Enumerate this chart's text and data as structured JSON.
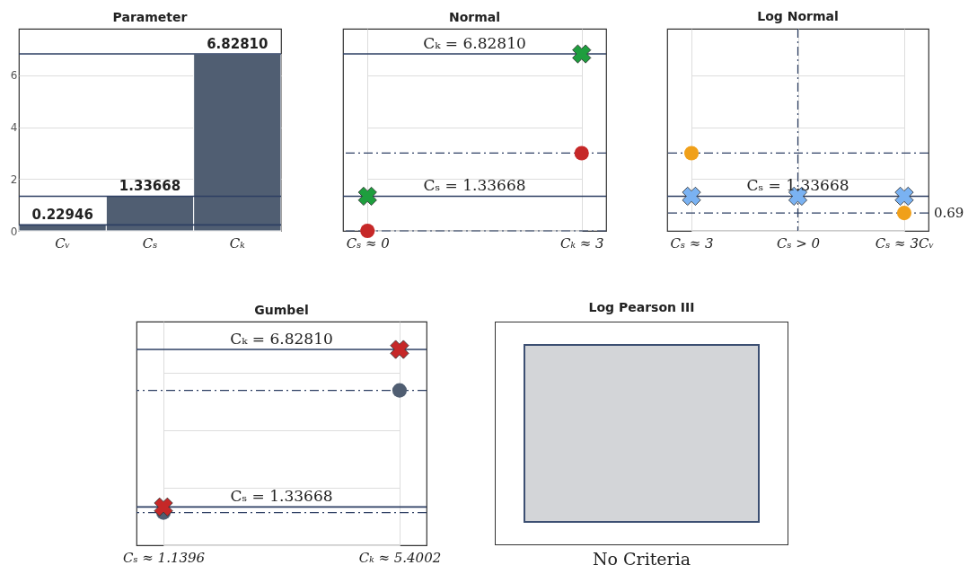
{
  "chart_data": [
    {
      "type": "bar",
      "title": "Parameter",
      "categories": [
        "Cᵥ",
        "Cₛ",
        "Cₖ"
      ],
      "values": [
        0.22946,
        1.33668,
        6.8281
      ],
      "color": "#505e72",
      "value_labels": [
        "0.22946",
        "1.33668",
        "6.82810"
      ],
      "ylim": [
        0,
        7.8
      ],
      "yticks": [
        0,
        2,
        4,
        6
      ],
      "grid": "y",
      "ref_lines": [
        {
          "axis": "y",
          "value": 0.22946,
          "color": "#2d3f63",
          "line_style": "solid"
        },
        {
          "axis": "y",
          "value": 1.33668,
          "color": "#2d3f63",
          "line_style": "solid"
        },
        {
          "axis": "y",
          "value": 6.8281,
          "color": "#2d3f63",
          "line_style": "solid"
        }
      ]
    },
    {
      "type": "scatter",
      "title": "Normal",
      "categories": [
        "Cₛ ≈ 0",
        "Cₖ ≈ 3"
      ],
      "ylim": [
        0,
        7.8
      ],
      "yticks": [
        0,
        2,
        4,
        6
      ],
      "grid": true,
      "tick_labels": "x",
      "series": [
        {
          "color": "#1e9e3e",
          "marker": "cross",
          "values": [
            1.33668,
            6.8281
          ]
        },
        {
          "color": "#c62828",
          "marker": "circle",
          "values": [
            0,
            3
          ]
        }
      ],
      "ref_lines": [
        {
          "axis": "y",
          "value": 6.8281,
          "label": "Cₖ = 6.82810",
          "color": "#2d3f63",
          "line_style": "solid"
        },
        {
          "axis": "y",
          "value": 3,
          "color": "#2d3f63",
          "line_style": "dashed"
        },
        {
          "axis": "y",
          "value": 1.33668,
          "label": "Cₛ = 1.33668",
          "color": "#2d3f63",
          "line_style": "solid"
        },
        {
          "axis": "y",
          "value": 0,
          "color": "#2d3f63",
          "line_style": "dashed"
        }
      ]
    },
    {
      "type": "scatter",
      "title": "Log Normal",
      "categories": [
        "Cₛ ≈ 3",
        "Cₛ > 0",
        "Cₛ ≈ 3Cᵥ"
      ],
      "ylim": [
        0,
        7.8
      ],
      "yticks": [
        0,
        2,
        4,
        6
      ],
      "grid": true,
      "tick_labels": "x",
      "series": [
        {
          "color": "#7ab2f2",
          "marker": "cross",
          "values": [
            1.33668,
            1.33668,
            1.33668
          ]
        },
        {
          "color": "#f0a01a",
          "marker": "circle",
          "values": [
            3,
            null,
            0.69
          ]
        }
      ],
      "ref_lines": [
        {
          "axis": "y",
          "value": 3,
          "color": "#2d3f63",
          "line_style": "dashed"
        },
        {
          "axis": "y",
          "value": 1.33668,
          "label": "Cₛ = 1.33668",
          "color": "#2d3f63",
          "line_style": "solid"
        },
        {
          "axis": "y",
          "value": 0.69,
          "label": "0.69",
          "color": "#2d3f63",
          "line_style": "dashed"
        },
        {
          "axis": "x",
          "value": "Cₛ > 0",
          "color": "#2d3f63",
          "line_style": "dashed"
        }
      ]
    },
    {
      "type": "scatter",
      "title": "Gumbel",
      "categories": [
        "Cₛ ≈ 1.1396",
        "Cₖ ≈ 5.4002"
      ],
      "ylim": [
        0,
        7.8
      ],
      "yticks": [
        0,
        2,
        4,
        6
      ],
      "grid": true,
      "tick_labels": "x",
      "series": [
        {
          "color": "#505e72",
          "marker": "circle",
          "values": [
            1.1396,
            5.4002
          ]
        },
        {
          "color": "#c62828",
          "marker": "cross",
          "values": [
            1.33668,
            6.8281
          ]
        }
      ],
      "ref_lines": [
        {
          "axis": "y",
          "value": 6.8281,
          "label": "Cₖ = 6.82810",
          "color": "#2d3f63",
          "line_style": "solid"
        },
        {
          "axis": "y",
          "value": 5.4002,
          "color": "#2d3f63",
          "line_style": "dashed"
        },
        {
          "axis": "y",
          "value": 1.33668,
          "label": "Cₛ = 1.33668",
          "color": "#2d3f63",
          "line_style": "solid"
        },
        {
          "axis": "y",
          "value": 1.1396,
          "color": "#2d3f63",
          "line_style": "dashed"
        }
      ]
    },
    {
      "type": "other",
      "title": "Log Pearson III",
      "xlabel": "No Criteria"
    }
  ]
}
